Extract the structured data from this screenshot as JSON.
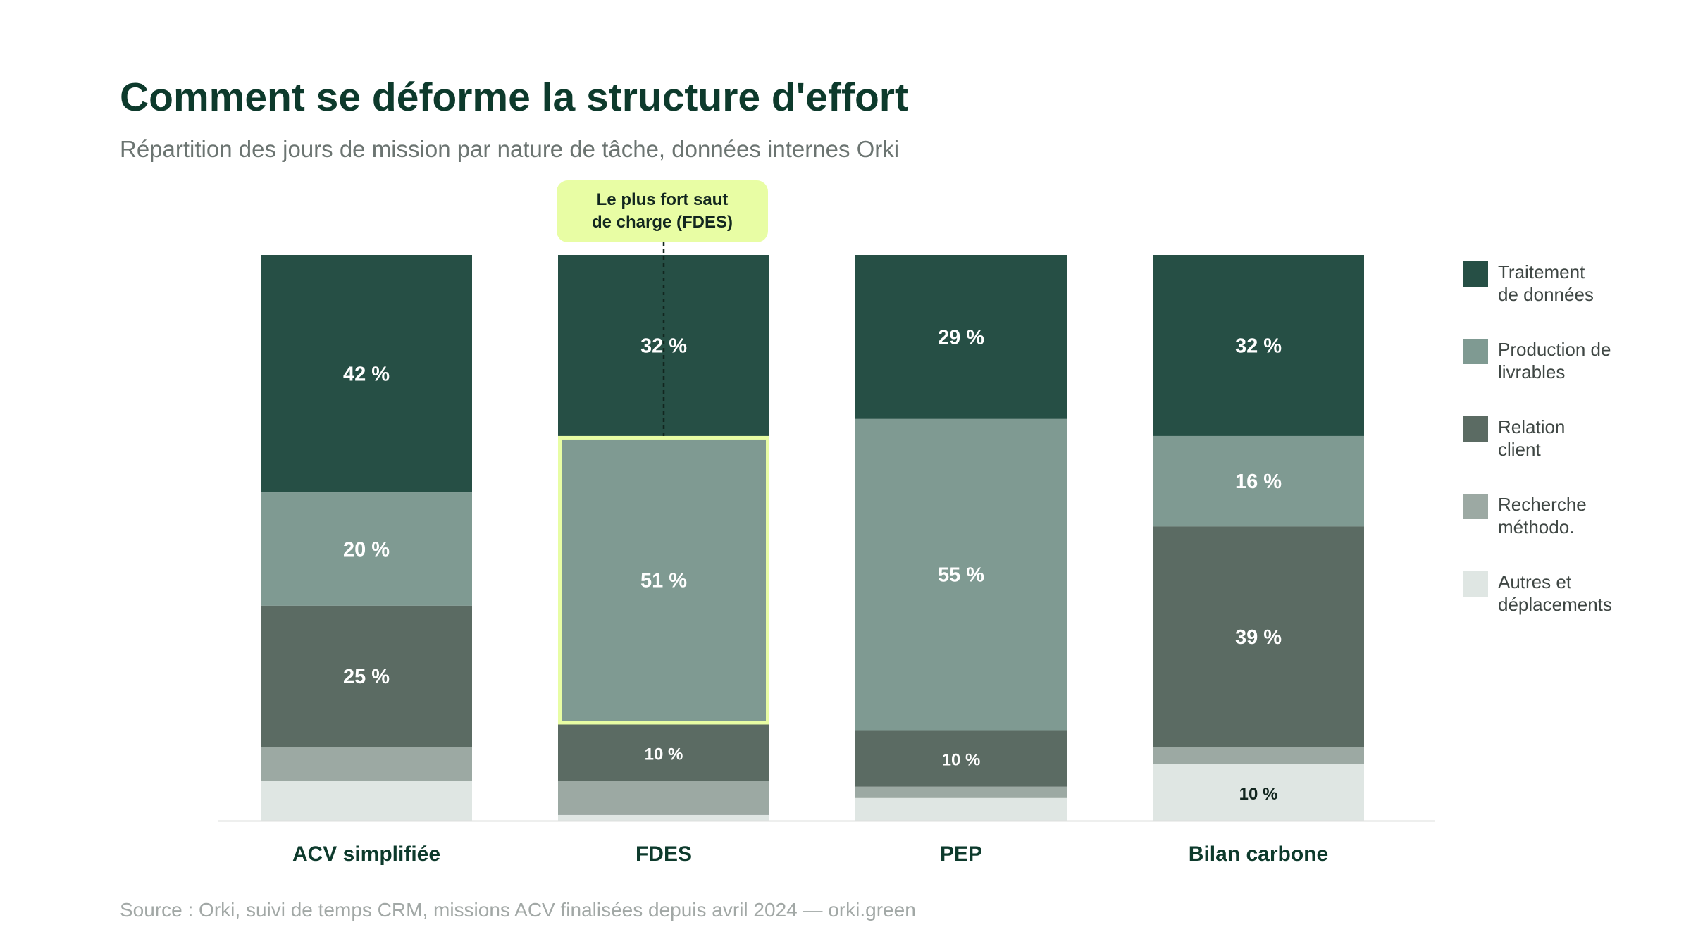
{
  "title": "Comment se déforme la structure d'effort",
  "subtitle": "Répartition des jours de mission par nature de tâche, données internes Orki",
  "source": "Source : Orki, suivi de temps CRM, missions ACV finalisées depuis avril 2024 — orki.green",
  "annotation": {
    "text_line1": "Le plus fort saut",
    "text_line2": "de charge (FDES)",
    "target_category": "FDES",
    "target_series": "Production de livrables",
    "highlight_color": "#e8fda4"
  },
  "chart_data": {
    "type": "bar",
    "stacked": true,
    "orientation": "vertical",
    "unit": "%",
    "ylim": [
      0,
      100
    ],
    "grid": false,
    "legend_position": "right",
    "title": "Comment se déforme la structure d'effort",
    "subtitle": "Répartition des jours de mission par nature de tâche, données internes Orki",
    "categories": [
      "ACV simplifiée",
      "FDES",
      "PEP",
      "Bilan carbone"
    ],
    "series": [
      {
        "name": "Traitement de données",
        "legend_lines": [
          "Traitement",
          "de données"
        ],
        "color": "#264f45",
        "label_color": "#ffffff",
        "values": [
          42,
          32,
          29,
          32
        ]
      },
      {
        "name": "Production de livrables",
        "legend_lines": [
          "Production de",
          "livrables"
        ],
        "color": "#7f9a92",
        "label_color": "#ffffff",
        "values": [
          20,
          51,
          55,
          16
        ]
      },
      {
        "name": "Relation client",
        "legend_lines": [
          "Relation",
          "client"
        ],
        "color": "#5b6b63",
        "label_color": "#ffffff",
        "values": [
          25,
          10,
          10,
          39
        ]
      },
      {
        "name": "Recherche méthodo.",
        "legend_lines": [
          "Recherche",
          "méthodo."
        ],
        "color": "#9ca9a3",
        "label_color": "#ffffff",
        "values": [
          6,
          6,
          2,
          3
        ]
      },
      {
        "name": "Autres et déplacements",
        "legend_lines": [
          "Autres et",
          "déplacements"
        ],
        "color": "#dfe6e3",
        "label_color": "#12261f",
        "values": [
          7,
          1,
          4,
          10
        ]
      }
    ],
    "data_labels": [
      [
        "42 %",
        "32 %",
        "29 %",
        "32 %"
      ],
      [
        "20 %",
        "51 %",
        "55 %",
        "16 %"
      ],
      [
        "25 %",
        "10 %",
        "10 %",
        "39 %"
      ],
      [
        "",
        "",
        "",
        ""
      ],
      [
        "",
        "",
        "",
        "10 %"
      ]
    ]
  }
}
